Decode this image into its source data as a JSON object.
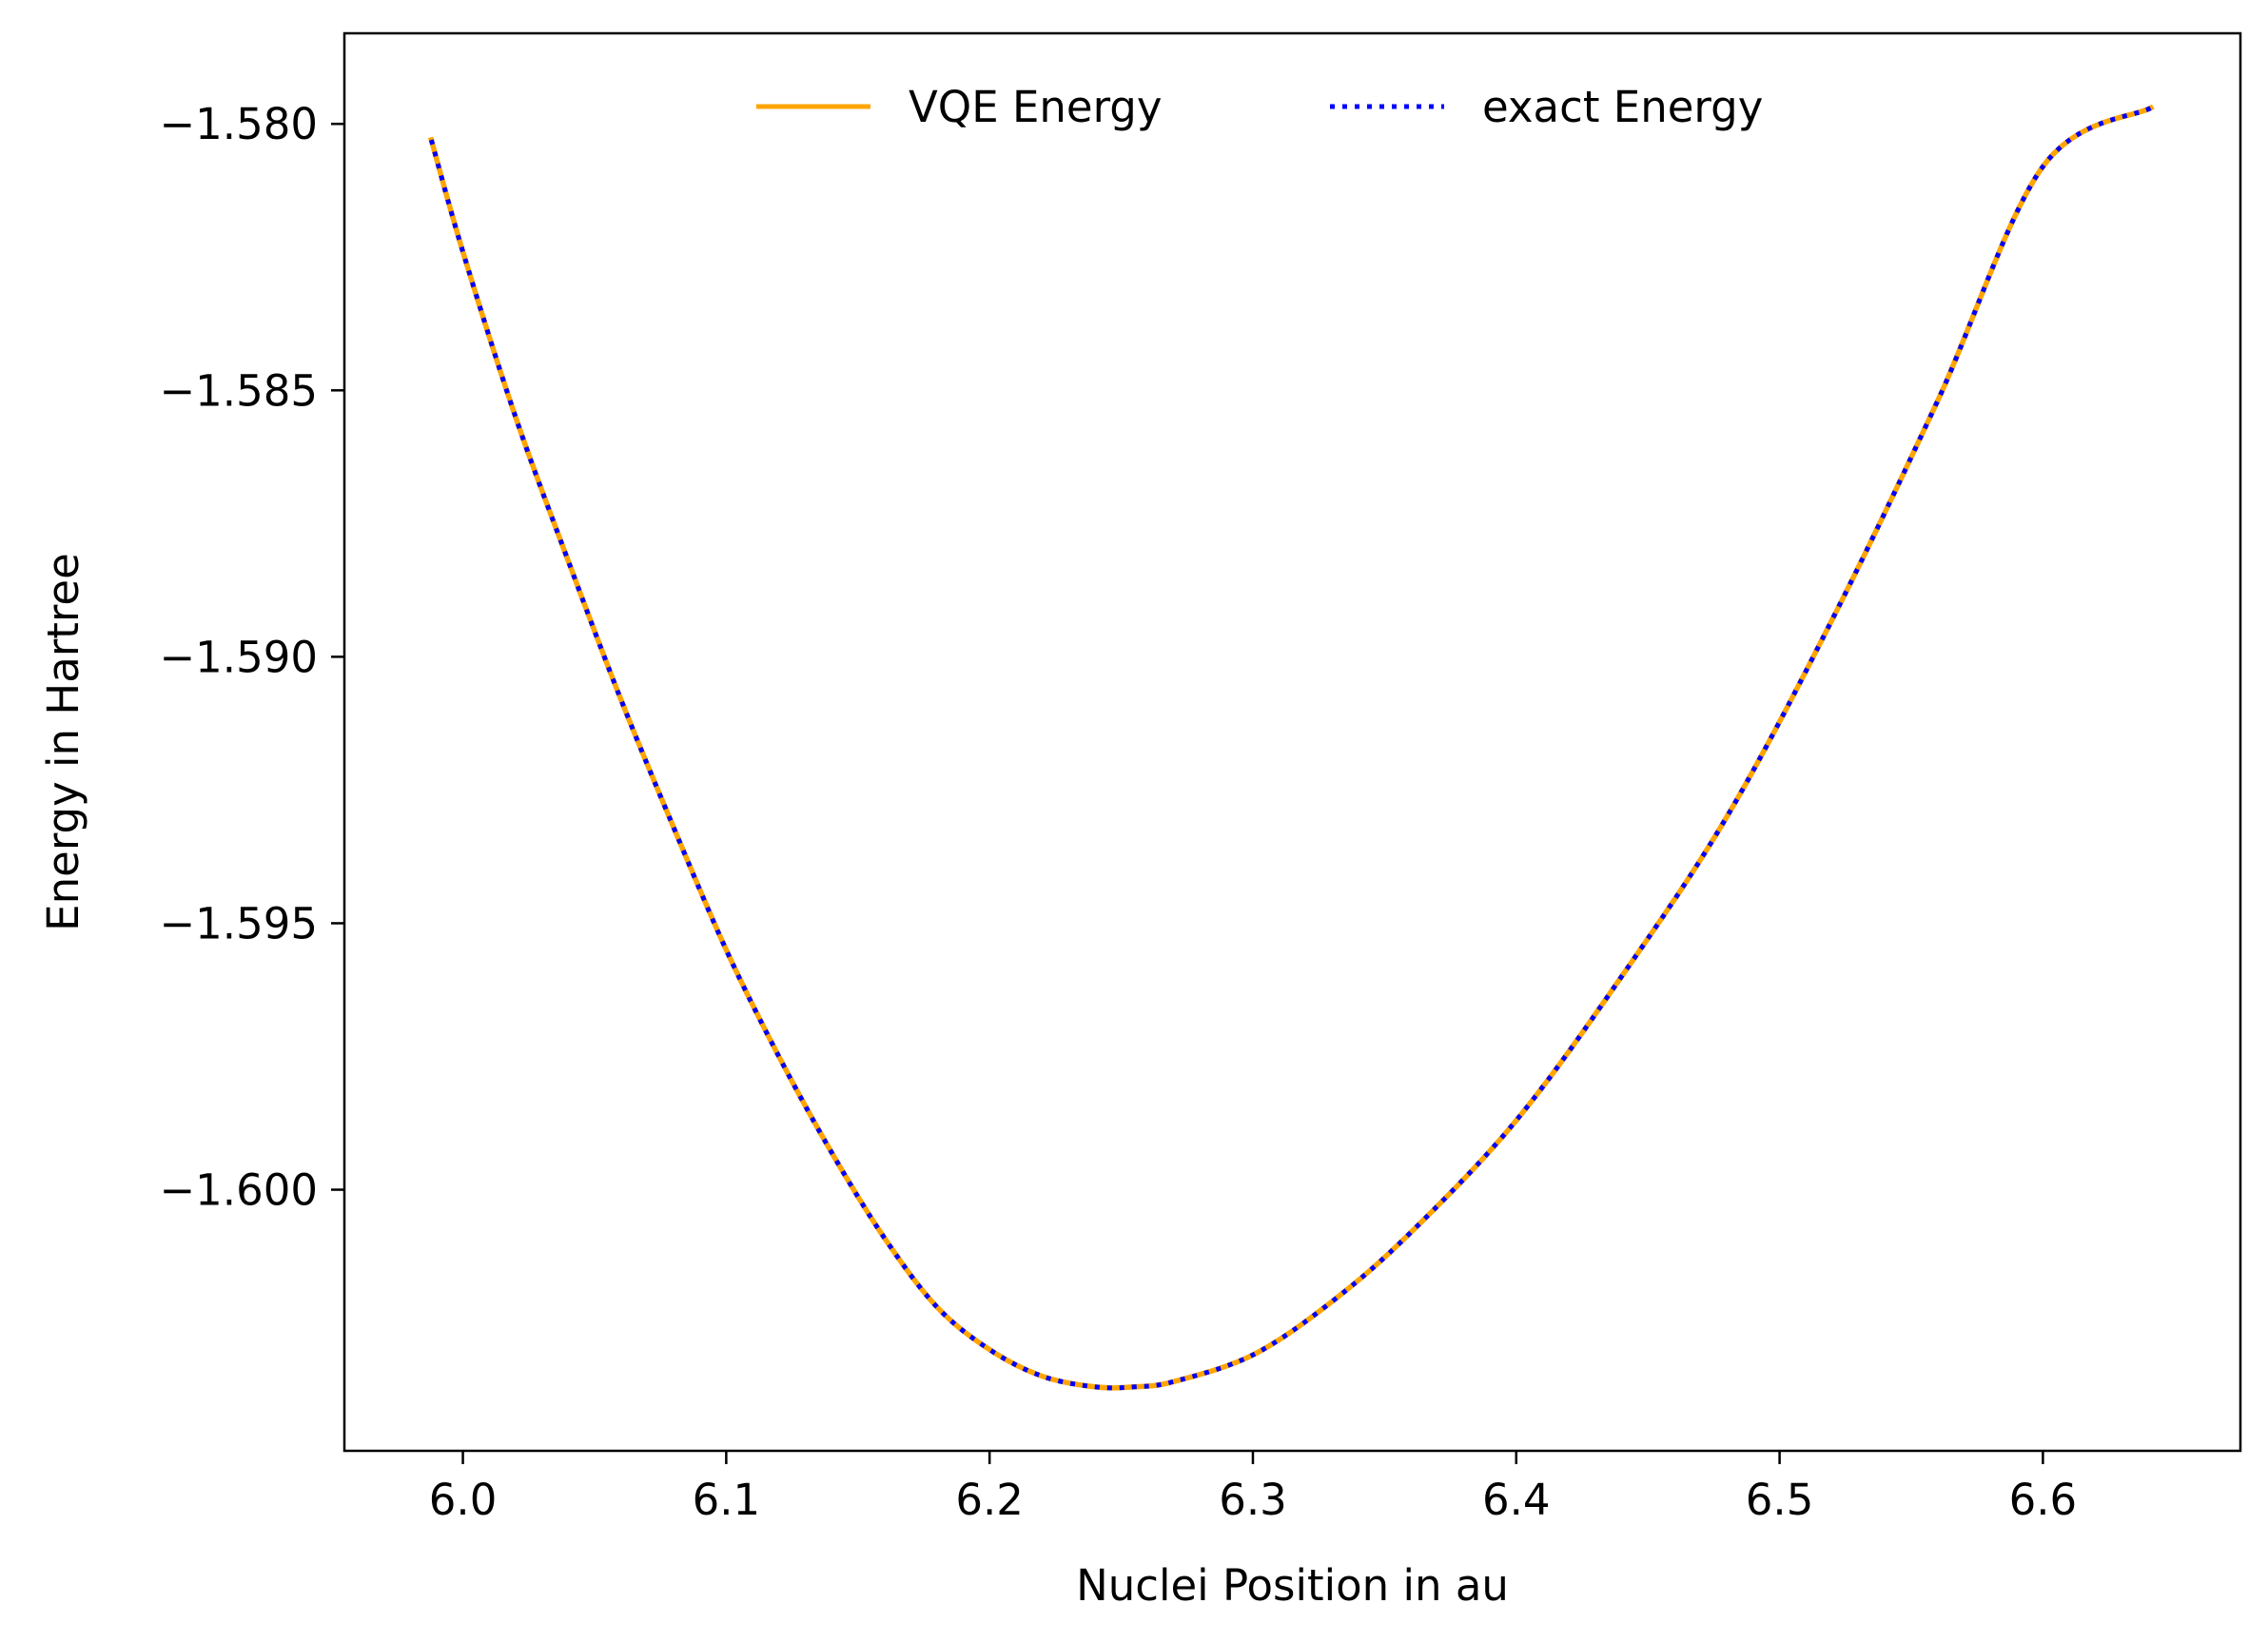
{
  "chart_data": {
    "type": "line",
    "xlabel": "Nuclei Position in au",
    "ylabel": "Energy in Hartree",
    "xlim": [
      5.955,
      6.675
    ],
    "ylim": [
      -1.6049,
      -1.5783
    ],
    "xticks": [
      6.0,
      6.1,
      6.2,
      6.3,
      6.4,
      6.5,
      6.6
    ],
    "xtick_labels": [
      "6.0",
      "6.1",
      "6.2",
      "6.3",
      "6.4",
      "6.5",
      "6.6"
    ],
    "yticks": [
      -1.58,
      -1.585,
      -1.59,
      -1.595,
      -1.6
    ],
    "ytick_labels": [
      "−1.580",
      "−1.585",
      "−1.590",
      "−1.595",
      "−1.600"
    ],
    "grid": false,
    "legend": {
      "placement": "top-center",
      "columns": 2
    },
    "series": [
      {
        "name": "VQE Energy",
        "color": "#ffa500",
        "style": "solid",
        "x": [
          5.988,
          6.0,
          6.02,
          6.04,
          6.06,
          6.08,
          6.1,
          6.12,
          6.14,
          6.16,
          6.18,
          6.2,
          6.22,
          6.24,
          6.255,
          6.27,
          6.3,
          6.33,
          6.36,
          6.4,
          6.44,
          6.48,
          6.52,
          6.56,
          6.6,
          6.641
        ],
        "y": [
          -1.5803,
          -1.5824,
          -1.5855,
          -1.5882,
          -1.5908,
          -1.5932,
          -1.5955,
          -1.5975,
          -1.5993,
          -1.6009,
          -1.6022,
          -1.603,
          -1.6035,
          -1.6037,
          -1.6037,
          -1.6036,
          -1.6031,
          -1.6021,
          -1.6008,
          -1.5987,
          -1.596,
          -1.593,
          -1.5893,
          -1.5852,
          -1.5808,
          -1.5797
        ]
      },
      {
        "name": "exact Energy",
        "color": "#0000ff",
        "style": "dotted",
        "x": [
          5.988,
          6.0,
          6.02,
          6.04,
          6.06,
          6.08,
          6.1,
          6.12,
          6.14,
          6.16,
          6.18,
          6.2,
          6.22,
          6.24,
          6.255,
          6.27,
          6.3,
          6.33,
          6.36,
          6.4,
          6.44,
          6.48,
          6.52,
          6.56,
          6.6,
          6.641
        ],
        "y": [
          -1.5803,
          -1.5824,
          -1.5855,
          -1.5882,
          -1.5908,
          -1.5932,
          -1.5955,
          -1.5975,
          -1.5993,
          -1.6009,
          -1.6022,
          -1.603,
          -1.6035,
          -1.6037,
          -1.6037,
          -1.6036,
          -1.6031,
          -1.6021,
          -1.6008,
          -1.5987,
          -1.596,
          -1.593,
          -1.5893,
          -1.5852,
          -1.5808,
          -1.5797
        ]
      }
    ]
  }
}
